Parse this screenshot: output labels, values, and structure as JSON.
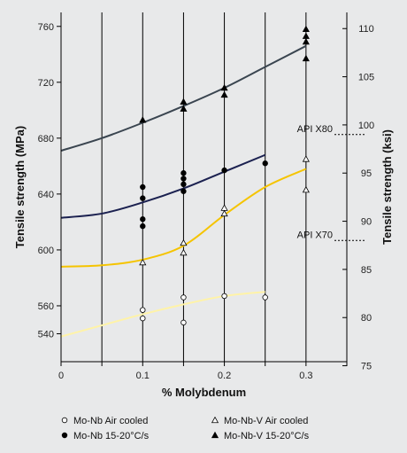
{
  "chart_data": {
    "type": "scatter",
    "title": "",
    "xlabel": "% Molybdenum",
    "ylabel": "Tensile strength (MPa)",
    "y2label": "Tensile strength (ksi)",
    "xlim": [
      0,
      0.35
    ],
    "ylim": [
      520,
      770
    ],
    "y2lim": [
      70,
      110
    ],
    "x_ticks": [
      "0",
      "0.1",
      "0.2",
      "0.3"
    ],
    "y_ticks": [
      "540",
      "560",
      "600",
      "640",
      "680",
      "720",
      "760"
    ],
    "y2_ticks": [
      "75",
      "80",
      "85",
      "90",
      "95",
      "100",
      "105",
      "110"
    ],
    "grid": "vertical lines every 0.05",
    "annotations": [
      {
        "text": "API X80",
        "ksi": 99
      },
      {
        "text": "API X70",
        "ksi": 88
      }
    ],
    "series": [
      {
        "name": "Mo-Nb Air cooled",
        "marker": "open-circle",
        "color": "#fff3a8",
        "points": [
          [
            0.1,
            551
          ],
          [
            0.1,
            557
          ],
          [
            0.15,
            548
          ],
          [
            0.15,
            566
          ],
          [
            0.2,
            567
          ],
          [
            0.25,
            566
          ]
        ],
        "trend": [
          [
            0,
            538
          ],
          [
            0.05,
            546
          ],
          [
            0.1,
            554
          ],
          [
            0.15,
            561
          ],
          [
            0.2,
            567
          ],
          [
            0.25,
            570
          ]
        ]
      },
      {
        "name": "Mo-Nb 15-20°C/s",
        "marker": "filled-circle",
        "color": "#1b2150",
        "points": [
          [
            0.1,
            617
          ],
          [
            0.1,
            622
          ],
          [
            0.1,
            637
          ],
          [
            0.1,
            645
          ],
          [
            0.15,
            642
          ],
          [
            0.15,
            647
          ],
          [
            0.15,
            651
          ],
          [
            0.15,
            655
          ],
          [
            0.2,
            657
          ],
          [
            0.25,
            662
          ]
        ],
        "trend": [
          [
            0,
            623
          ],
          [
            0.05,
            626
          ],
          [
            0.1,
            634
          ],
          [
            0.15,
            644
          ],
          [
            0.2,
            656
          ],
          [
            0.25,
            668
          ]
        ]
      },
      {
        "name": "Mo-Nb-V Air cooled",
        "marker": "open-triangle",
        "color": "#f5c400",
        "points": [
          [
            0.1,
            591
          ],
          [
            0.15,
            598
          ],
          [
            0.15,
            605
          ],
          [
            0.2,
            626
          ],
          [
            0.2,
            630
          ],
          [
            0.3,
            643
          ],
          [
            0.3,
            665
          ]
        ],
        "trend": [
          [
            0,
            588
          ],
          [
            0.05,
            589
          ],
          [
            0.1,
            593
          ],
          [
            0.15,
            603
          ],
          [
            0.2,
            625
          ],
          [
            0.25,
            645
          ],
          [
            0.3,
            658
          ]
        ]
      },
      {
        "name": "Mo-Nb-V 15-20°C/s",
        "marker": "filled-triangle",
        "color": "#3a4550",
        "points": [
          [
            0.1,
            693
          ],
          [
            0.15,
            701
          ],
          [
            0.15,
            706
          ],
          [
            0.2,
            711
          ],
          [
            0.2,
            716
          ],
          [
            0.3,
            737
          ],
          [
            0.3,
            749
          ],
          [
            0.3,
            753
          ],
          [
            0.3,
            758
          ]
        ],
        "trend": [
          [
            0,
            671
          ],
          [
            0.05,
            680
          ],
          [
            0.1,
            691
          ],
          [
            0.15,
            703
          ],
          [
            0.2,
            716
          ],
          [
            0.25,
            731
          ],
          [
            0.3,
            746
          ]
        ]
      }
    ],
    "legend": {
      "position": "bottom",
      "columns": 2
    }
  }
}
